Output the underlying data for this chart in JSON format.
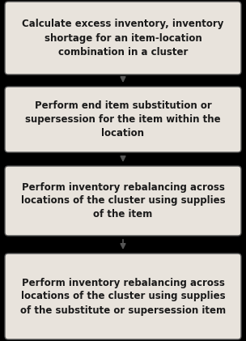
{
  "background_color": "#000000",
  "box_color": "#e8e3dc",
  "box_edge_color": "#555555",
  "arrow_color": "#555555",
  "text_color": "#1a1a1a",
  "boxes": [
    "Calculate excess inventory, inventory\nshortage for an item-location\ncombination in a cluster",
    "Perform end item substitution or\nsupersession for the item within the\nlocation",
    "Perform inventory rebalancing across\nlocations of the cluster using supplies\nof the item",
    "Perform inventory rebalancing across\nlocations of the cluster using supplies\nof the substitute or supersession item"
  ],
  "font_size": 8.5,
  "fig_width": 3.04,
  "fig_height": 4.21,
  "dpi": 100
}
